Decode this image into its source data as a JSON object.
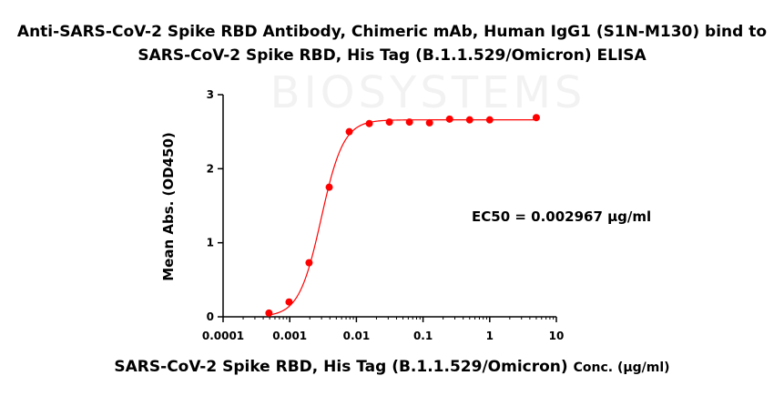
{
  "chart_data": {
    "type": "scatter",
    "title_line1": "Anti-SARS-CoV-2 Spike RBD Antibody, Chimeric mAb, Human IgG1 (S1N-M130) bind to",
    "title_line2": "SARS-CoV-2 Spike RBD, His Tag (B.1.1.529/Omicron) ELISA",
    "xlabel_main": "SARS-CoV-2 Spike RBD, His Tag (B.1.1.529/Omicron)",
    "xlabel_unit": "Conc. (μg/ml)",
    "ylabel": "Mean Abs. (OD450)",
    "xscale": "log",
    "xlim": [
      0.0001,
      10
    ],
    "ylim": [
      0,
      3
    ],
    "x_ticks": [
      {
        "value": 0.0001,
        "label": "0.0001"
      },
      {
        "value": 0.001,
        "label": "0.001"
      },
      {
        "value": 0.01,
        "label": "0.01"
      },
      {
        "value": 0.1,
        "label": "0.1"
      },
      {
        "value": 1,
        "label": "1"
      },
      {
        "value": 10,
        "label": "10"
      }
    ],
    "y_ticks": [
      {
        "value": 0,
        "label": "0"
      },
      {
        "value": 1,
        "label": "1"
      },
      {
        "value": 2,
        "label": "2"
      },
      {
        "value": 3,
        "label": "3"
      }
    ],
    "series": [
      {
        "color": "#ff0000",
        "x": [
          0.000488,
          0.000977,
          0.00195,
          0.00391,
          0.00781,
          0.0156,
          0.03125,
          0.0625,
          0.125,
          0.25,
          0.5,
          1,
          5
        ],
        "y": [
          0.05,
          0.2,
          0.73,
          1.75,
          2.5,
          2.61,
          2.63,
          2.63,
          2.62,
          2.67,
          2.66,
          2.66,
          2.69
        ]
      }
    ],
    "fit": {
      "bottom": 0.0,
      "top": 2.66,
      "ec50": 0.002967,
      "hill": 2.6,
      "color": "#ff0000"
    },
    "annotation": "EC50 = 0.002967 μg/ml",
    "watermark": "BIOSYSTEMS"
  }
}
